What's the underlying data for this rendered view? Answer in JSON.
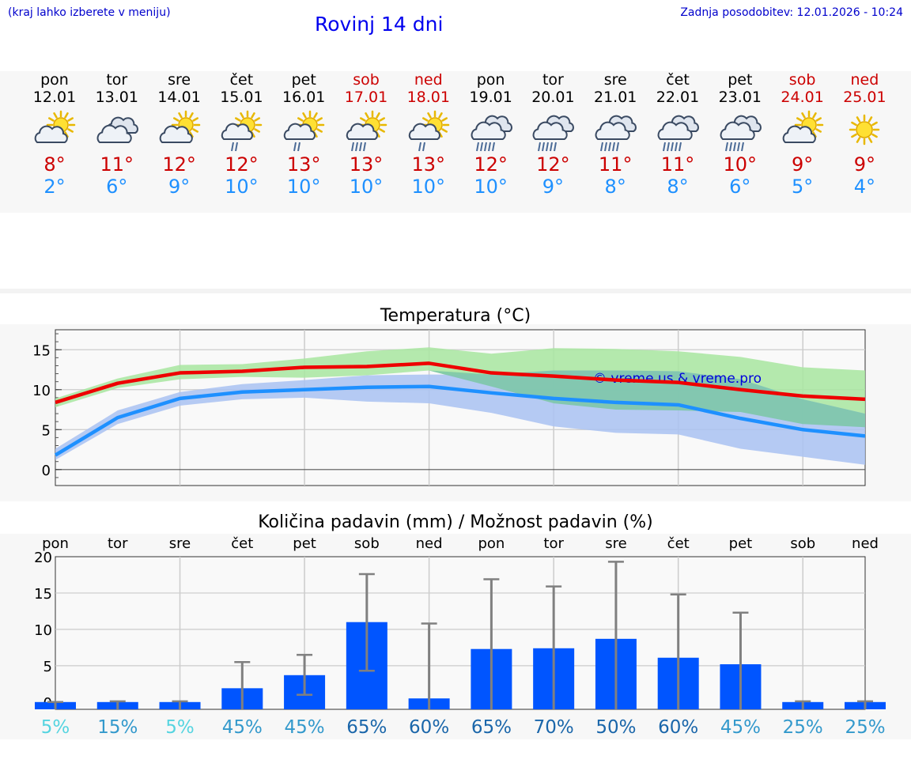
{
  "header": {
    "hint": "(kraj lahko izberete v meniju)",
    "title": "Rovinj 14 dni",
    "updated_label": "Zadnja posodobitev:",
    "updated_value": "12.01.2026 - 10:24"
  },
  "days": [
    {
      "name": "pon",
      "date": "12.01",
      "weekend": false,
      "icon": "sun-cloud-icon",
      "tmax": "8°",
      "tmin": "2°"
    },
    {
      "name": "tor",
      "date": "13.01",
      "weekend": false,
      "icon": "clouds-icon",
      "tmax": "11°",
      "tmin": "6°"
    },
    {
      "name": "sre",
      "date": "14.01",
      "weekend": false,
      "icon": "sun-cloud-icon",
      "tmax": "12°",
      "tmin": "9°"
    },
    {
      "name": "čet",
      "date": "15.01",
      "weekend": false,
      "icon": "sun-cloud-rain-icon",
      "tmax": "12°",
      "tmin": "10°"
    },
    {
      "name": "pet",
      "date": "16.01",
      "weekend": false,
      "icon": "sun-cloud-rain-icon",
      "tmax": "13°",
      "tmin": "10°"
    },
    {
      "name": "sob",
      "date": "17.01",
      "weekend": true,
      "icon": "sun-cloud-heavy-rain-icon",
      "tmax": "13°",
      "tmin": "10°"
    },
    {
      "name": "ned",
      "date": "18.01",
      "weekend": true,
      "icon": "sun-cloud-rain-icon",
      "tmax": "13°",
      "tmin": "10°"
    },
    {
      "name": "pon",
      "date": "19.01",
      "weekend": false,
      "icon": "clouds-rain-icon",
      "tmax": "12°",
      "tmin": "10°"
    },
    {
      "name": "tor",
      "date": "20.01",
      "weekend": false,
      "icon": "clouds-rain-icon",
      "tmax": "12°",
      "tmin": "9°"
    },
    {
      "name": "sre",
      "date": "21.01",
      "weekend": false,
      "icon": "clouds-rain-icon",
      "tmax": "11°",
      "tmin": "8°"
    },
    {
      "name": "čet",
      "date": "22.01",
      "weekend": false,
      "icon": "clouds-rain-icon",
      "tmax": "11°",
      "tmin": "8°"
    },
    {
      "name": "pet",
      "date": "23.01",
      "weekend": false,
      "icon": "clouds-rain-icon",
      "tmax": "10°",
      "tmin": "6°"
    },
    {
      "name": "sob",
      "date": "24.01",
      "weekend": true,
      "icon": "sun-cloud-icon",
      "tmax": "9°",
      "tmin": "5°"
    },
    {
      "name": "ned",
      "date": "25.01",
      "weekend": true,
      "icon": "sun-icon",
      "tmax": "9°",
      "tmin": "4°"
    }
  ],
  "colors": {
    "max_line": "#ee0000",
    "min_line": "#1e90ff",
    "max_band": "#a8e6a0",
    "min_band": "#a9c2f2",
    "overlap_band": "#7bc7a6",
    "bar": "#0055ff",
    "whisker": "#808080"
  },
  "chart_data": [
    {
      "type": "line",
      "title": "Temperatura (°C)",
      "x_points": [
        0,
        1,
        2,
        3,
        4,
        5,
        6,
        7,
        8,
        9,
        10,
        11,
        12,
        13
      ],
      "ylim": [
        -2,
        17.5
      ],
      "yticks": [
        0,
        5,
        10,
        15
      ],
      "series": [
        {
          "name": "max",
          "values": [
            8.4,
            10.8,
            12.1,
            12.3,
            12.8,
            12.9,
            13.3,
            12.1,
            11.7,
            11.2,
            10.9,
            10.0,
            9.2,
            8.8
          ]
        },
        {
          "name": "min",
          "values": [
            1.8,
            6.5,
            8.9,
            9.7,
            10.0,
            10.3,
            10.4,
            9.6,
            8.9,
            8.4,
            8.1,
            6.4,
            5.0,
            4.2
          ]
        }
      ],
      "bands": [
        {
          "name": "max_range",
          "upper": [
            8.9,
            11.4,
            13.1,
            13.2,
            13.9,
            14.8,
            15.3,
            14.5,
            15.2,
            15.1,
            14.8,
            14.1,
            12.8,
            12.4
          ],
          "lower": [
            7.8,
            10.2,
            11.3,
            11.6,
            11.5,
            11.8,
            12.4,
            10.4,
            8.3,
            7.5,
            7.4,
            7.2,
            5.7,
            5.3
          ]
        },
        {
          "name": "min_range",
          "upper": [
            2.6,
            7.4,
            9.7,
            10.7,
            11.2,
            11.8,
            11.9,
            11.9,
            12.4,
            12.4,
            12.3,
            11.3,
            8.8,
            7.0
          ],
          "lower": [
            1.2,
            5.7,
            8.0,
            8.8,
            9.0,
            8.5,
            8.3,
            7.1,
            5.4,
            4.6,
            4.4,
            2.6,
            1.6,
            0.6
          ]
        }
      ],
      "watermark": "© vreme.us & vreme.pro"
    },
    {
      "type": "bar",
      "title": "Količina padavin (mm) / Možnost padavin (%)",
      "categories": [
        "pon",
        "tor",
        "sre",
        "čet",
        "pet",
        "sob",
        "ned",
        "pon",
        "tor",
        "sre",
        "čet",
        "pet",
        "sob",
        "ned"
      ],
      "ylim": [
        -1,
        20
      ],
      "yticks": [
        0,
        5,
        10,
        15,
        20
      ],
      "values": [
        0,
        0,
        0,
        1.9,
        3.7,
        11.0,
        0.5,
        7.3,
        7.4,
        8.7,
        6.1,
        5.2,
        0,
        0
      ],
      "err_low": [
        0,
        0,
        0,
        0,
        1,
        4.3,
        0,
        0,
        0,
        0,
        0,
        0,
        0,
        0
      ],
      "err_high": [
        0,
        0.1,
        0.1,
        5.5,
        6.5,
        17.6,
        10.8,
        16.9,
        15.9,
        19.3,
        14.8,
        12.3,
        0.1,
        0.1
      ],
      "probability": [
        "5%",
        "15%",
        "5%",
        "45%",
        "45%",
        "65%",
        "60%",
        "65%",
        "70%",
        "50%",
        "60%",
        "45%",
        "25%",
        "25%"
      ],
      "probability_colors": [
        "#55d4e0",
        "#3399cc",
        "#55d4e0",
        "#3399cc",
        "#3399cc",
        "#1a66aa",
        "#1a66aa",
        "#1a66aa",
        "#1a66aa",
        "#1a66aa",
        "#1a66aa",
        "#3399cc",
        "#3399cc",
        "#3399cc"
      ]
    }
  ]
}
